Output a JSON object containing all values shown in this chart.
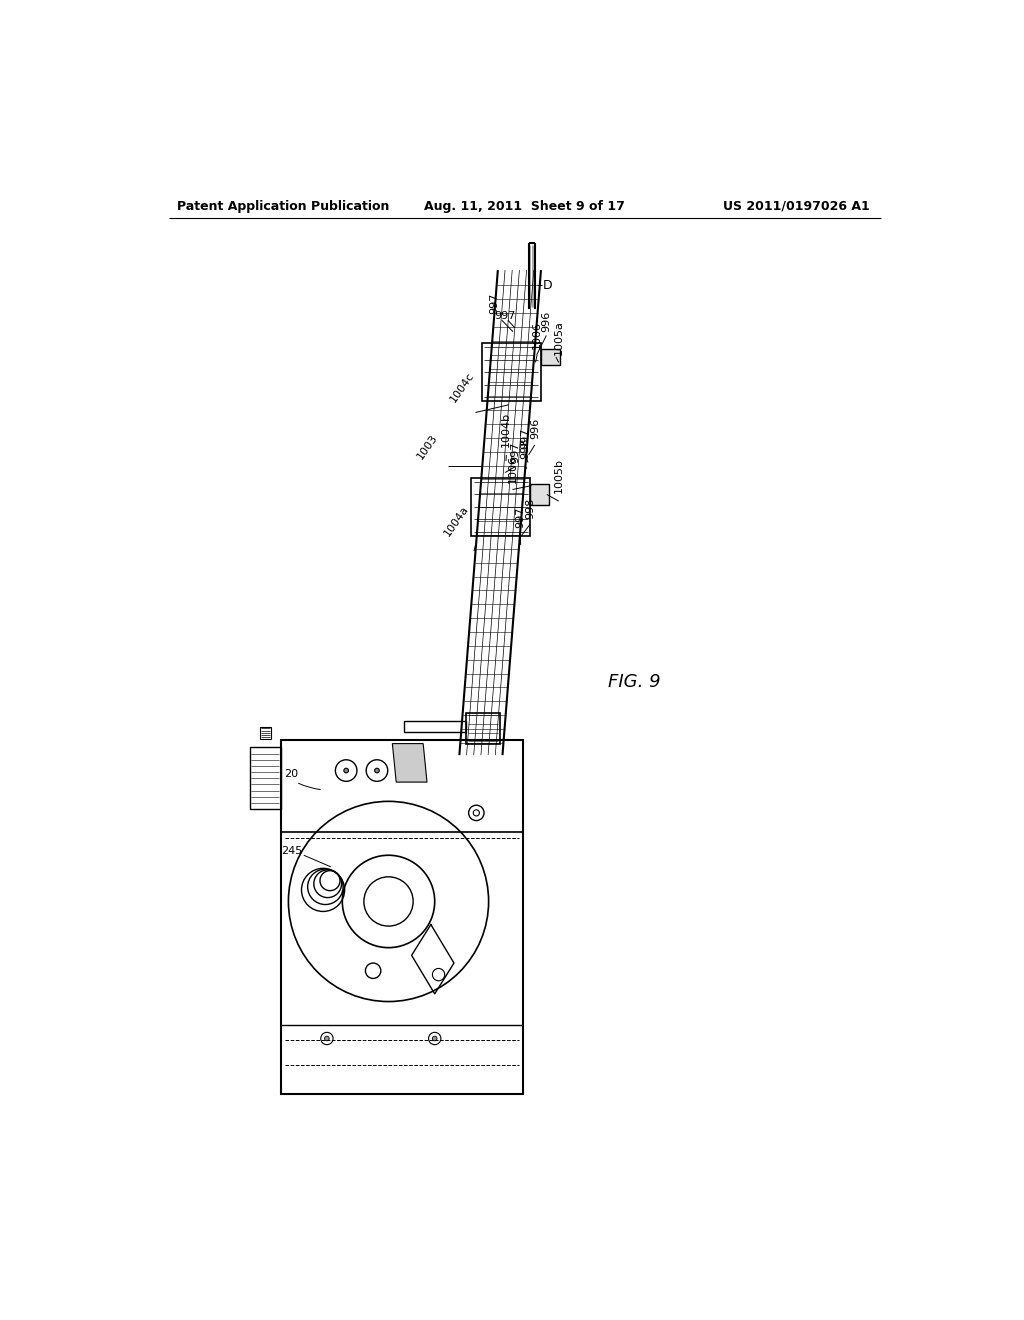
{
  "bg_color": "#ffffff",
  "header_left": "Patent Application Publication",
  "header_center": "Aug. 11, 2011  Sheet 9 of 17",
  "header_right": "US 2011/0197026 A1",
  "fig_label": "FIG. 9"
}
